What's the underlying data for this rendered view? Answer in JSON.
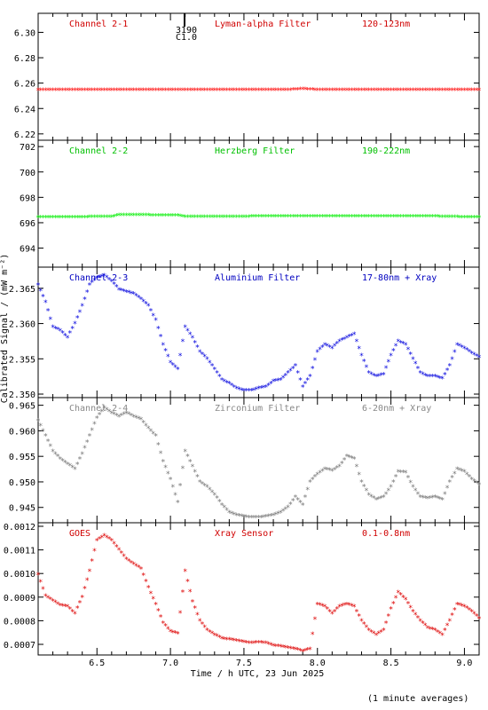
{
  "ylabel": "Calibrated Signal / (mW m⁻²)",
  "xlabel": "Time / h UTC, 23 Jun 2025",
  "footnote": "(1 minute averages)",
  "marker": {
    "values": [
      "3190",
      "C1.0"
    ]
  },
  "chart_data": [
    {
      "type": "scatter",
      "labels": [
        "Channel 2-1",
        "Lyman-alpha Filter",
        "120-123nm"
      ],
      "label_color": "#d00000",
      "color": "#ff0000",
      "ylim": [
        6.215,
        6.315
      ],
      "yticks": [
        "6.22",
        "6.24",
        "6.26",
        "6.28",
        "6.30"
      ],
      "xlim": [
        6.1,
        9.1
      ],
      "xticks": [
        "6.5",
        "7.0",
        "7.5",
        "8.0",
        "8.5",
        "9.0"
      ],
      "series": [
        {
          "x": [
            6.1,
            7.8,
            7.9,
            8.0,
            9.1
          ],
          "y": [
            6.2545,
            6.2545,
            6.2552,
            6.2545,
            6.2545
          ]
        }
      ]
    },
    {
      "type": "scatter",
      "labels": [
        "Channel 2-2",
        "Herzberg Filter",
        "190-222nm"
      ],
      "label_color": "#00c000",
      "color": "#00ee00",
      "ylim": [
        692.5,
        702.5
      ],
      "yticks": [
        "694",
        "696",
        "698",
        "700",
        "702"
      ],
      "xlim": [
        6.1,
        9.1
      ],
      "xticks": [
        "6.5",
        "7.0",
        "7.5",
        "8.0",
        "8.5",
        "9.0"
      ],
      "series": [
        {
          "x": [
            6.1,
            6.6,
            6.65,
            7.05,
            7.1,
            8.3,
            8.7,
            9.1
          ],
          "y": [
            696.4,
            696.45,
            696.6,
            696.55,
            696.45,
            696.5,
            696.5,
            696.4
          ]
        }
      ]
    },
    {
      "type": "scatter",
      "labels": [
        "Channel 2-3",
        "Aluminium Filter",
        "17-80nm + Xray"
      ],
      "label_color": "#0000c0",
      "color": "#0000dd",
      "ylim": [
        2.3495,
        2.368
      ],
      "yticks": [
        "2.350",
        "2.355",
        "2.360",
        "2.365"
      ],
      "xlim": [
        6.1,
        9.1
      ],
      "xticks": [
        "6.5",
        "7.0",
        "7.5",
        "8.0",
        "8.5",
        "9.0"
      ],
      "series": [
        {
          "x": [
            6.1,
            6.15,
            6.2,
            6.25,
            6.3,
            6.35,
            6.4,
            6.45,
            6.5,
            6.55,
            6.6,
            6.65,
            6.7,
            6.75,
            6.8,
            6.85,
            6.9,
            6.95,
            7.0,
            7.05,
            7.1,
            7.15,
            7.2,
            7.25,
            7.3,
            7.35,
            7.4,
            7.45,
            7.5,
            7.55,
            7.6,
            7.65,
            7.7,
            7.75,
            7.8,
            7.85,
            7.9,
            7.95,
            8.0,
            8.05,
            8.1,
            8.15,
            8.2,
            8.25,
            8.3,
            8.35,
            8.4,
            8.45,
            8.5,
            8.55,
            8.6,
            8.65,
            8.7,
            8.75,
            8.8,
            8.85,
            8.9,
            8.95,
            9.0,
            9.05,
            9.1
          ],
          "y": [
            2.3655,
            2.363,
            2.3595,
            2.359,
            2.358,
            2.36,
            2.3625,
            2.3655,
            2.3665,
            2.3668,
            2.366,
            2.3648,
            2.3645,
            2.3642,
            2.3635,
            2.3625,
            2.3605,
            2.357,
            2.3545,
            2.3535,
            2.3595,
            2.358,
            2.356,
            2.355,
            2.3535,
            2.352,
            2.3515,
            2.3508,
            2.3505,
            2.3505,
            2.3508,
            2.351,
            2.3518,
            2.352,
            2.353,
            2.354,
            2.351,
            2.3525,
            2.356,
            2.357,
            2.3565,
            2.3575,
            2.358,
            2.3585,
            2.3555,
            2.353,
            2.3525,
            2.3528,
            2.3555,
            2.3575,
            2.357,
            2.355,
            2.353,
            2.3525,
            2.3525,
            2.3522,
            2.354,
            2.357,
            2.3565,
            2.3558,
            2.3552
          ]
        }
      ]
    },
    {
      "type": "scatter",
      "labels": [
        "Channel 2-4",
        "Zirconium Filter",
        "6-20nm + Xray"
      ],
      "label_color": "#888888",
      "color": "#777777",
      "ylim": [
        0.942,
        0.9665
      ],
      "yticks": [
        "0.945",
        "0.950",
        "0.955",
        "0.960",
        "0.965"
      ],
      "xlim": [
        6.1,
        9.1
      ],
      "xticks": [
        "6.5",
        "7.0",
        "7.5",
        "8.0",
        "8.5",
        "9.0"
      ],
      "series": [
        {
          "x": [
            6.1,
            6.15,
            6.2,
            6.25,
            6.3,
            6.35,
            6.4,
            6.45,
            6.5,
            6.55,
            6.6,
            6.65,
            6.7,
            6.75,
            6.8,
            6.85,
            6.9,
            6.95,
            7.0,
            7.05,
            7.1,
            7.15,
            7.2,
            7.25,
            7.3,
            7.35,
            7.4,
            7.45,
            7.5,
            7.55,
            7.6,
            7.65,
            7.7,
            7.75,
            7.8,
            7.85,
            7.9,
            7.95,
            8.0,
            8.05,
            8.1,
            8.15,
            8.2,
            8.25,
            8.3,
            8.35,
            8.4,
            8.45,
            8.5,
            8.55,
            8.6,
            8.65,
            8.7,
            8.75,
            8.8,
            8.85,
            8.9,
            8.95,
            9.0,
            9.05,
            9.1
          ],
          "y": [
            0.962,
            0.959,
            0.956,
            0.9545,
            0.9535,
            0.9525,
            0.9555,
            0.959,
            0.9625,
            0.9645,
            0.9635,
            0.9628,
            0.9635,
            0.9628,
            0.9622,
            0.9605,
            0.959,
            0.954,
            0.9505,
            0.946,
            0.956,
            0.953,
            0.95,
            0.949,
            0.9475,
            0.9455,
            0.944,
            0.9435,
            0.9432,
            0.943,
            0.943,
            0.9432,
            0.9435,
            0.944,
            0.945,
            0.947,
            0.9455,
            0.95,
            0.9515,
            0.9525,
            0.9522,
            0.953,
            0.955,
            0.9545,
            0.95,
            0.9475,
            0.9465,
            0.947,
            0.949,
            0.952,
            0.9518,
            0.949,
            0.947,
            0.9468,
            0.947,
            0.9465,
            0.95,
            0.9525,
            0.952,
            0.9505,
            0.9495
          ]
        }
      ]
    },
    {
      "type": "scatter",
      "labels": [
        "GOES",
        "Xray Sensor",
        "0.1-0.8nm"
      ],
      "label_color": "#d00000",
      "color": "#dd0000",
      "ylim": [
        0.000655,
        0.001215
      ],
      "yticks": [
        "0.0007",
        "0.0008",
        "0.0009",
        "0.0010",
        "0.0011",
        "0.0012"
      ],
      "xlim": [
        6.1,
        9.1
      ],
      "xticks": [
        "6.5",
        "7.0",
        "7.5",
        "8.0",
        "8.5",
        "9.0"
      ],
      "series": [
        {
          "x": [
            6.1,
            6.15,
            6.2,
            6.25,
            6.3,
            6.35,
            6.4,
            6.45,
            6.5,
            6.55,
            6.6,
            6.65,
            6.7,
            6.75,
            6.8,
            6.85,
            6.9,
            6.95,
            7.0,
            7.05,
            7.1,
            7.15,
            7.2,
            7.25,
            7.3,
            7.35,
            7.4,
            7.45,
            7.5,
            7.55,
            7.6,
            7.65,
            7.7,
            7.75,
            7.8,
            7.85,
            7.9,
            7.95,
            8.0,
            8.05,
            8.1,
            8.15,
            8.2,
            8.25,
            8.3,
            8.35,
            8.4,
            8.45,
            8.5,
            8.55,
            8.6,
            8.65,
            8.7,
            8.75,
            8.8,
            8.85,
            8.9,
            8.95,
            9.0,
            9.05,
            9.1
          ],
          "y": [
            0.000995,
            0.000905,
            0.000885,
            0.000865,
            0.00086,
            0.00083,
            0.0009,
            0.00101,
            0.00114,
            0.00116,
            0.00114,
            0.0011,
            0.00106,
            0.00104,
            0.00102,
            0.00094,
            0.00087,
            0.00079,
            0.000755,
            0.000745,
            0.00101,
            0.00088,
            0.0008,
            0.00076,
            0.00074,
            0.000725,
            0.00072,
            0.000715,
            0.00071,
            0.000705,
            0.000708,
            0.000705,
            0.000695,
            0.00069,
            0.000685,
            0.00068,
            0.00067,
            0.00068,
            0.00087,
            0.00086,
            0.00083,
            0.00086,
            0.00087,
            0.00086,
            0.0008,
            0.00076,
            0.00074,
            0.00076,
            0.00085,
            0.00092,
            0.00089,
            0.00084,
            0.0008,
            0.00077,
            0.00076,
            0.00074,
            0.0008,
            0.00087,
            0.00086,
            0.00084,
            0.00081
          ]
        }
      ]
    }
  ]
}
